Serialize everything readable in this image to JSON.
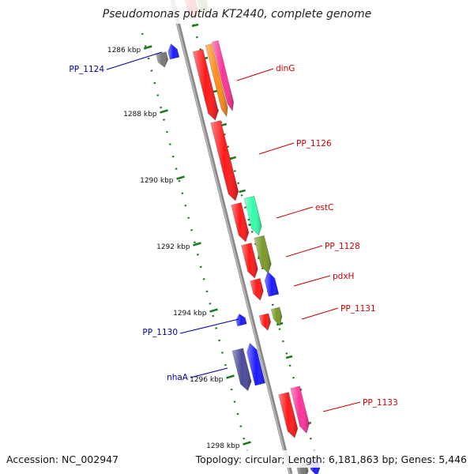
{
  "title": "Pseudomonas putida KT2440, complete genome",
  "footer": {
    "accession": "Accession: NC_002947",
    "summary": "Topology: circular; Length: 6,181,863 bp; Genes: 5,446"
  },
  "colors": {
    "backbone": "#8a8a8a",
    "tick": "#1f7a1f",
    "label_forward": "#cc0000",
    "label_reverse": "#0000aa",
    "red": "#ff1a1a",
    "orange": "#ff8c1a",
    "pink": "#ff3399",
    "teal": "#33ffaa",
    "olive": "#7a9a2a",
    "blue": "#1a1aff",
    "gray": "#777777",
    "navy": "#4a4a99"
  },
  "ticks": [
    "1286 kbp",
    "1288 kbp",
    "1290 kbp",
    "1292 kbp",
    "1294 kbp",
    "1296 kbp",
    "1298 kbp"
  ],
  "gene_labels": [
    {
      "text": "PP_1124",
      "strand": "reverse"
    },
    {
      "text": "dinG",
      "strand": "forward"
    },
    {
      "text": "PP_1126",
      "strand": "forward"
    },
    {
      "text": "estC",
      "strand": "forward"
    },
    {
      "text": "PP_1128",
      "strand": "forward"
    },
    {
      "text": "pdxH",
      "strand": "forward"
    },
    {
      "text": "PP_1131",
      "strand": "forward"
    },
    {
      "text": "PP_1130",
      "strand": "reverse"
    },
    {
      "text": "nhaA",
      "strand": "reverse"
    },
    {
      "text": "PP_1133",
      "strand": "forward"
    }
  ]
}
